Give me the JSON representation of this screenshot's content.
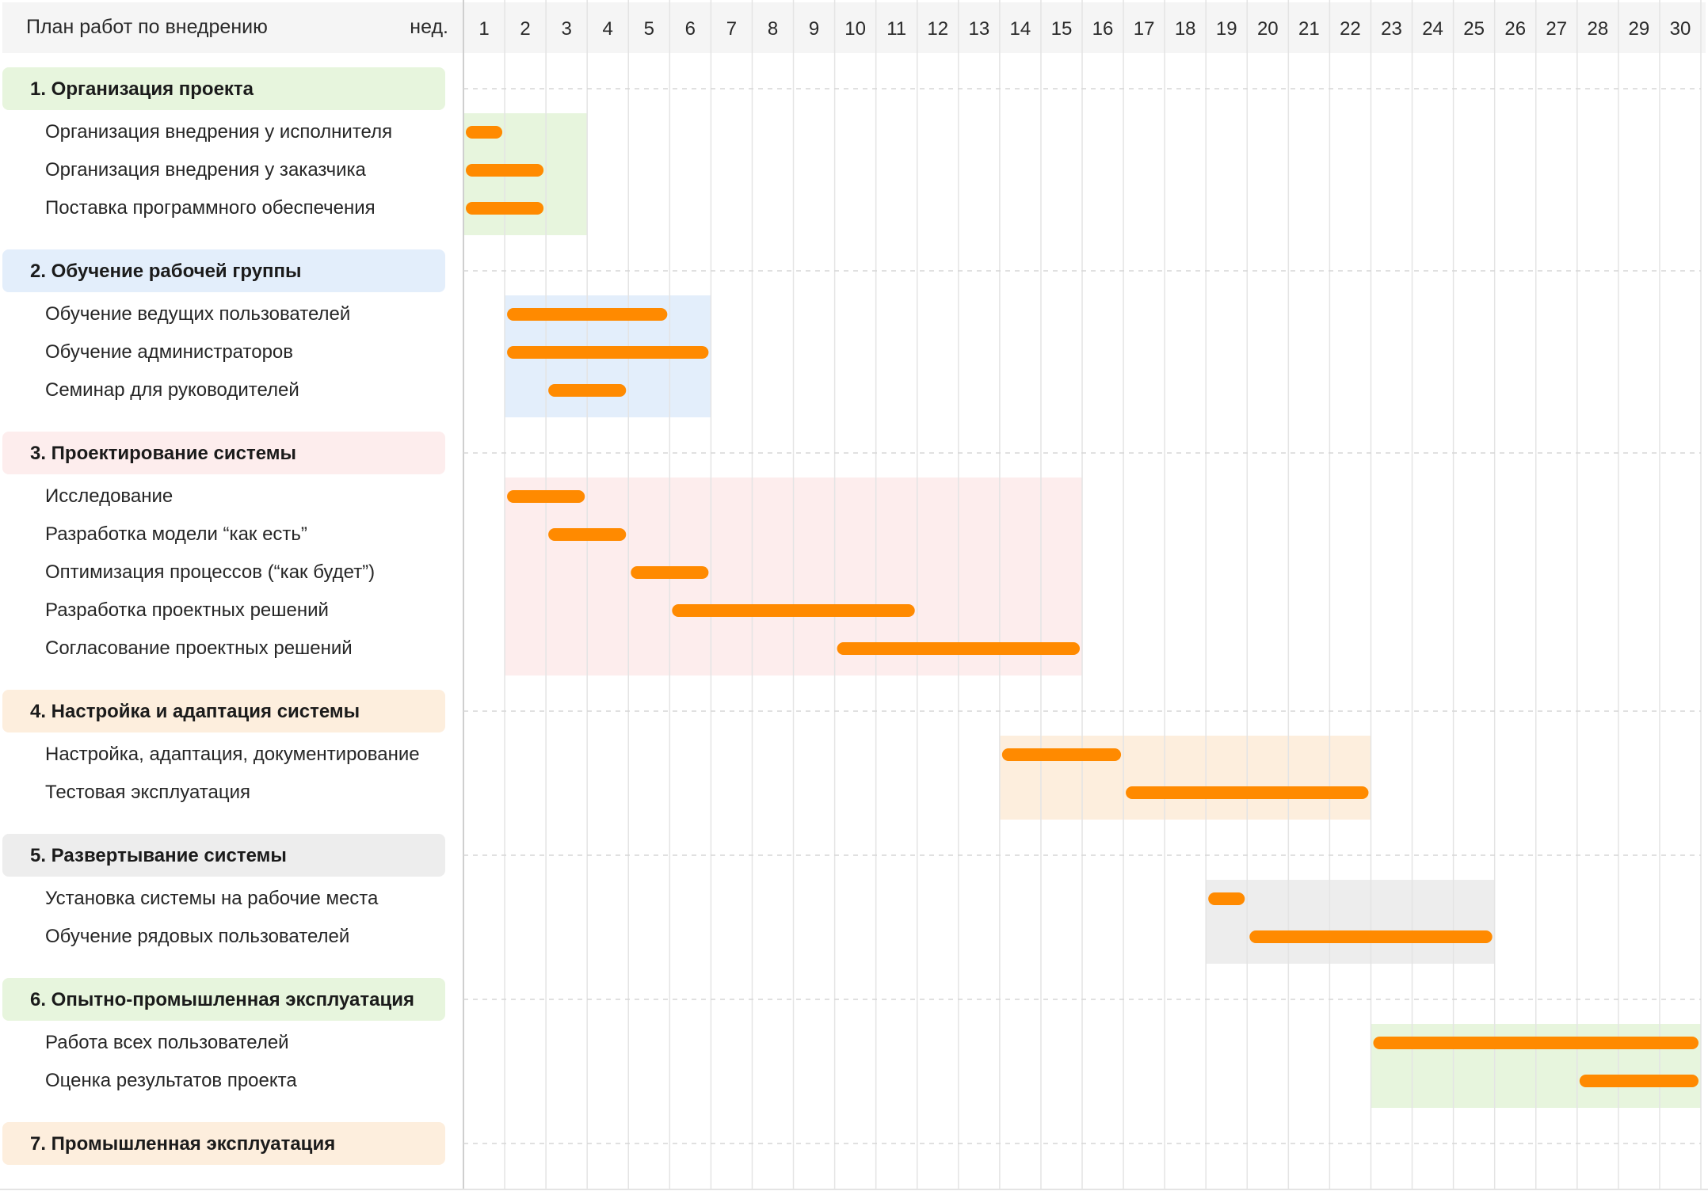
{
  "header": {
    "title": "План работ по внедрению",
    "unit_label": "нед."
  },
  "weeks": [
    "1",
    "2",
    "3",
    "4",
    "5",
    "6",
    "7",
    "8",
    "9",
    "10",
    "11",
    "12",
    "13",
    "14",
    "15",
    "16",
    "17",
    "18",
    "19",
    "20",
    "21",
    "22",
    "23",
    "24",
    "25",
    "26",
    "27",
    "28",
    "29",
    "30"
  ],
  "colors": {
    "bar": "#ff8a00",
    "header_bg": "#f5f5f5",
    "gridline": "#e4e4e4",
    "separator": "#d6d6d6",
    "group_green": "#e7f5dd",
    "group_blue": "#e3eefb",
    "group_pink": "#fdeded",
    "group_peach": "#fdeedd",
    "group_gray": "#ededed"
  },
  "chart_data": {
    "type": "gantt",
    "time_unit": "нед.",
    "x_range": [
      1,
      30
    ],
    "groups": [
      {
        "title": "1. Организация проекта",
        "color": "#e7f5dd",
        "span": [
          1,
          3
        ],
        "tasks": [
          {
            "label": "Организация внедрения у исполнителя",
            "start": 1,
            "end": 1
          },
          {
            "label": "Организация внедрения у заказчика",
            "start": 1,
            "end": 2
          },
          {
            "label": "Поставка программного обеспечения",
            "start": 1,
            "end": 2
          }
        ]
      },
      {
        "title": "2. Обучение рабочей группы",
        "color": "#e3eefb",
        "span": [
          2,
          6
        ],
        "tasks": [
          {
            "label": "Обучение ведущих пользователей",
            "start": 2,
            "end": 5
          },
          {
            "label": "Обучение администраторов",
            "start": 2,
            "end": 6
          },
          {
            "label": "Семинар для руководителей",
            "start": 3,
            "end": 4
          }
        ]
      },
      {
        "title": "3. Проектирование системы",
        "color": "#fdeded",
        "span": [
          2,
          15
        ],
        "tasks": [
          {
            "label": "Исследование",
            "start": 2,
            "end": 3
          },
          {
            "label": "Разработка модели “как есть”",
            "start": 3,
            "end": 4
          },
          {
            "label": "Оптимизация процессов (“как будет”)",
            "start": 5,
            "end": 6
          },
          {
            "label": "Разработка проектных решений",
            "start": 6,
            "end": 11
          },
          {
            "label": "Согласование проектных решений",
            "start": 10,
            "end": 15
          }
        ]
      },
      {
        "title": "4. Настройка и адаптация системы",
        "color": "#fdeedd",
        "span": [
          14,
          22
        ],
        "tasks": [
          {
            "label": "Настройка, адаптация, документирование",
            "start": 14,
            "end": 16
          },
          {
            "label": "Тестовая эксплуатация",
            "start": 17,
            "end": 22
          }
        ]
      },
      {
        "title": "5. Развертывание системы",
        "color": "#ededed",
        "span": [
          19,
          25
        ],
        "tasks": [
          {
            "label": "Установка системы на рабочие места",
            "start": 19,
            "end": 19
          },
          {
            "label": "Обучение рядовых пользователей",
            "start": 20,
            "end": 25
          }
        ]
      },
      {
        "title": "6. Опытно-промышленная эксплуатация",
        "color": "#e7f5dd",
        "span": [
          23,
          30
        ],
        "tasks": [
          {
            "label": "Работа всех пользователей",
            "start": 23,
            "end": 30
          },
          {
            "label": "Оценка результатов проекта",
            "start": 28,
            "end": 30
          }
        ]
      },
      {
        "title": "7. Промышленная эксплуатация",
        "color": "#fdeedd",
        "span": null,
        "tasks": []
      }
    ]
  }
}
